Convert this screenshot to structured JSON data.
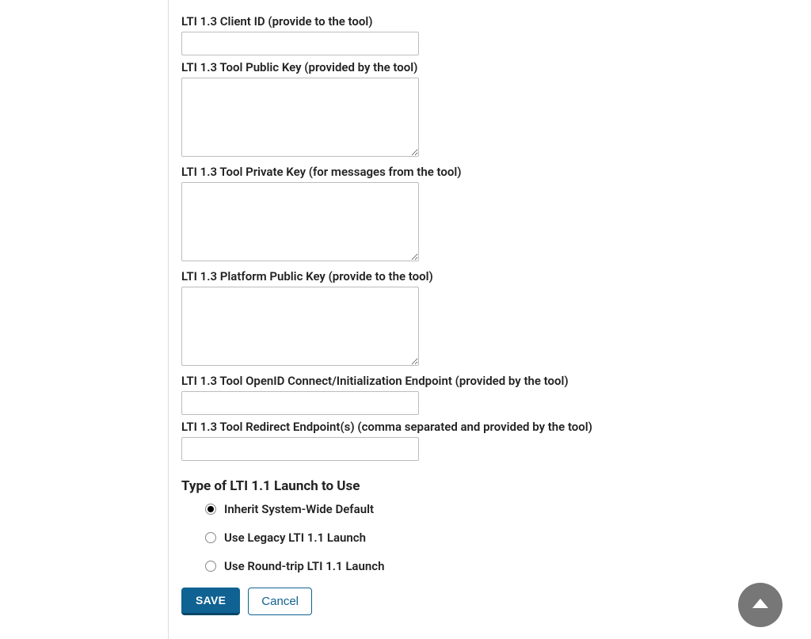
{
  "fields": {
    "client_id": {
      "label": "LTI 1.3 Client ID (provide to the tool)",
      "value": ""
    },
    "tool_public_key": {
      "label": "LTI 1.3 Tool Public Key (provided by the tool)",
      "value": ""
    },
    "tool_private_key": {
      "label": "LTI 1.3 Tool Private Key (for messages from the tool)",
      "value": ""
    },
    "platform_public_key": {
      "label": "LTI 1.3 Platform Public Key (provide to the tool)",
      "value": ""
    },
    "oidc_endpoint": {
      "label": "LTI 1.3 Tool OpenID Connect/Initialization Endpoint (provided by the tool)",
      "value": ""
    },
    "redirect_endpoints": {
      "label": "LTI 1.3 Tool Redirect Endpoint(s) (comma separated and provided by the tool)",
      "value": ""
    }
  },
  "launch_type": {
    "heading": "Type of LTI 1.1 Launch to Use",
    "options": [
      {
        "label": "Inherit System-Wide Default",
        "selected": true
      },
      {
        "label": "Use Legacy LTI 1.1 Launch",
        "selected": false
      },
      {
        "label": "Use Round-trip LTI 1.1 Launch",
        "selected": false
      }
    ]
  },
  "buttons": {
    "save": "SAVE",
    "cancel": "Cancel"
  },
  "colors": {
    "primary": "#0f6292",
    "primary_dark": "#0a4668",
    "border": "#bdbdbd",
    "divider": "#dcdcdc",
    "scroll_bg": "#777777",
    "text": "#212121"
  }
}
